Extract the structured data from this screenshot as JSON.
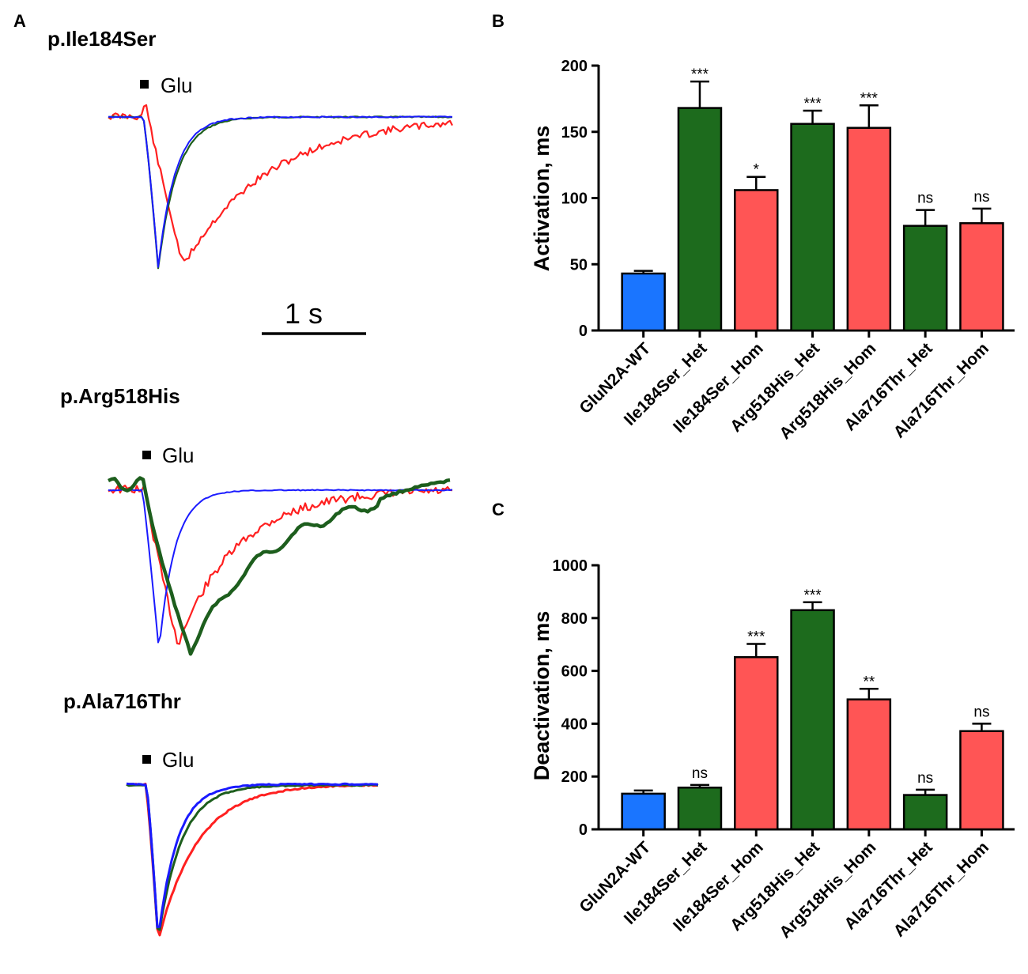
{
  "panel_a": {
    "letter": "A",
    "glu_label": "Glu",
    "scale_bar_label": "1 s",
    "colors": {
      "wt": "#1a1aff",
      "het": "#1d5e1d",
      "hom": "#ff2020"
    },
    "traces": [
      {
        "title": "p.Ile184Ser"
      },
      {
        "title": "p.Arg518His"
      },
      {
        "title": "p.Ala716Thr"
      }
    ]
  },
  "chart_data": [
    {
      "type": "bar",
      "panel": "B",
      "title": "",
      "xlabel": "",
      "ylabel": "Activation, ms",
      "ylim": [
        0,
        200
      ],
      "yticks": [
        0,
        50,
        100,
        150,
        200
      ],
      "categories": [
        "GluN2A-WT",
        "Ile184Ser_Het",
        "Ile184Ser_Hom",
        "Arg518His_Het",
        "Arg518His_Hom",
        "Ala716Thr_Het",
        "Ala716Thr_Hom"
      ],
      "values": [
        43,
        168,
        106,
        156,
        153,
        79,
        81
      ],
      "errors": [
        2,
        20,
        10,
        10,
        17,
        12,
        11
      ],
      "significance": [
        "",
        "***",
        "*",
        "***",
        "***",
        "ns",
        "ns"
      ],
      "bar_colors": [
        "#1a75ff",
        "#1d6b1d",
        "#ff5555",
        "#1d6b1d",
        "#ff5555",
        "#1d6b1d",
        "#ff5555"
      ]
    },
    {
      "type": "bar",
      "panel": "C",
      "title": "",
      "xlabel": "",
      "ylabel": "Deactivation, ms",
      "ylim": [
        0,
        1000
      ],
      "yticks": [
        0,
        200,
        400,
        600,
        800,
        1000
      ],
      "categories": [
        "GluN2A-WT",
        "Ile184Ser_Het",
        "Ile184Ser_Hom",
        "Arg518His_Het",
        "Arg518His_Hom",
        "Ala716Thr_Het",
        "Ala716Thr_Hom"
      ],
      "values": [
        135,
        158,
        652,
        830,
        492,
        130,
        372
      ],
      "errors": [
        12,
        10,
        50,
        30,
        40,
        20,
        28
      ],
      "significance": [
        "",
        "ns",
        "***",
        "***",
        "**",
        "ns",
        "ns"
      ],
      "bar_colors": [
        "#1a75ff",
        "#1d6b1d",
        "#ff5555",
        "#1d6b1d",
        "#ff5555",
        "#1d6b1d",
        "#ff5555"
      ]
    }
  ]
}
